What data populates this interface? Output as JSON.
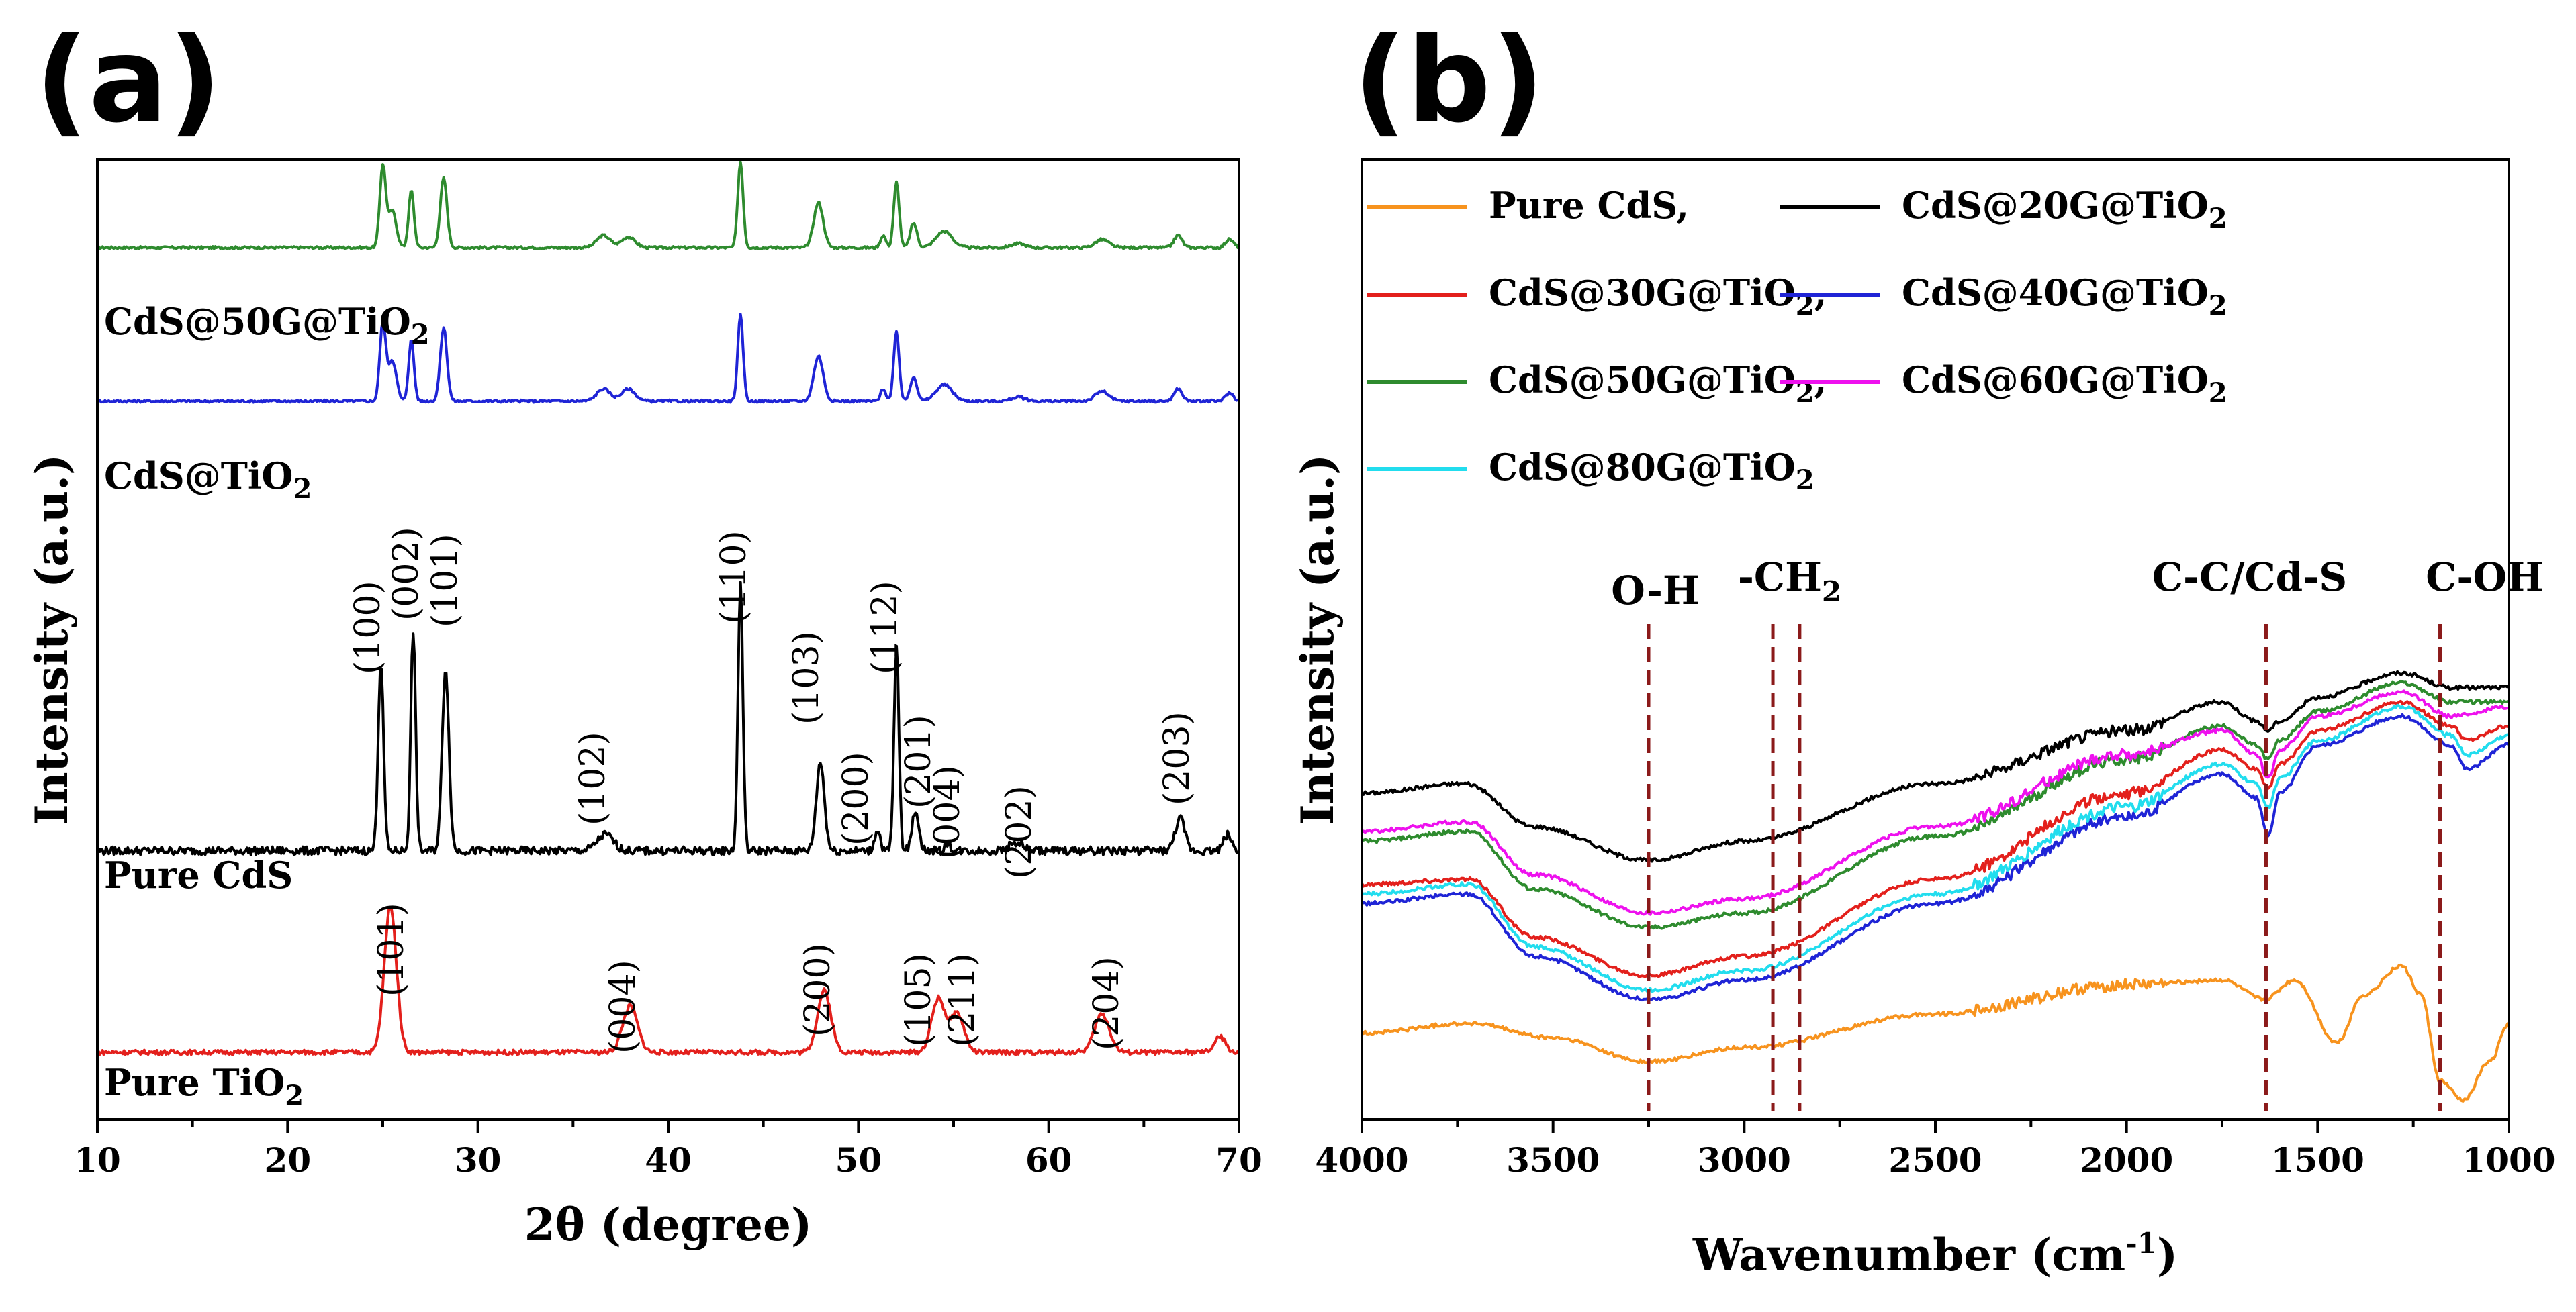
{
  "chart_data": [
    {
      "panel": "(a)",
      "type": "line",
      "title": "",
      "xlabel": "2θ (degree)",
      "ylabel": "Intensity (a.u.)",
      "xlim": [
        10,
        70
      ],
      "xticks": [
        10,
        20,
        30,
        40,
        50,
        60,
        70
      ],
      "series": [
        {
          "name": "CdS@50G@TiO",
          "name_sub": "2",
          "color": "#2e8b2e",
          "offset": 0.9,
          "scale": 0.085,
          "baseline": 0.1,
          "peaks": [
            [
              25.0,
              1.0,
              0.22
            ],
            [
              25.5,
              0.45,
              0.3
            ],
            [
              26.5,
              0.7,
              0.2
            ],
            [
              28.2,
              0.85,
              0.25
            ],
            [
              36.6,
              0.15,
              0.5
            ],
            [
              37.9,
              0.13,
              0.5
            ],
            [
              43.8,
              1.05,
              0.2
            ],
            [
              47.9,
              0.55,
              0.35
            ],
            [
              51.3,
              0.15,
              0.2
            ],
            [
              52.0,
              0.8,
              0.2
            ],
            [
              52.9,
              0.3,
              0.25
            ],
            [
              54.5,
              0.2,
              0.6
            ],
            [
              58.4,
              0.05,
              0.5
            ],
            [
              62.8,
              0.1,
              0.5
            ],
            [
              66.8,
              0.15,
              0.3
            ],
            [
              69.5,
              0.1,
              0.3
            ]
          ]
        },
        {
          "name": "CdS@TiO",
          "name_sub": "2",
          "color": "#1f24d6",
          "offset": 0.74,
          "scale": 0.085,
          "baseline": 0.1,
          "peaks": [
            [
              25.0,
              0.95,
              0.22
            ],
            [
              25.5,
              0.5,
              0.3
            ],
            [
              26.5,
              0.75,
              0.2
            ],
            [
              28.2,
              0.9,
              0.25
            ],
            [
              36.6,
              0.15,
              0.5
            ],
            [
              37.9,
              0.15,
              0.5
            ],
            [
              43.8,
              1.05,
              0.2
            ],
            [
              47.9,
              0.55,
              0.35
            ],
            [
              51.3,
              0.15,
              0.2
            ],
            [
              52.0,
              0.85,
              0.2
            ],
            [
              52.9,
              0.3,
              0.25
            ],
            [
              54.5,
              0.2,
              0.6
            ],
            [
              58.4,
              0.05,
              0.5
            ],
            [
              62.8,
              0.12,
              0.5
            ],
            [
              66.8,
              0.15,
              0.3
            ],
            [
              69.5,
              0.1,
              0.3
            ]
          ]
        },
        {
          "name": "Pure CdS",
          "color": "#000000",
          "offset": 0.28,
          "scale": 0.28,
          "baseline": 0.0,
          "peaks": [
            [
              24.9,
              0.7,
              0.2
            ],
            [
              26.6,
              0.82,
              0.18
            ],
            [
              28.3,
              0.68,
              0.25
            ],
            [
              36.7,
              0.06,
              0.6
            ],
            [
              43.8,
              1.0,
              0.18
            ],
            [
              48.0,
              0.33,
              0.3
            ],
            [
              51.0,
              0.08,
              0.2
            ],
            [
              52.0,
              0.76,
              0.18
            ],
            [
              53.0,
              0.15,
              0.25
            ],
            [
              54.7,
              0.03,
              0.2
            ],
            [
              58.3,
              0.03,
              0.5
            ],
            [
              66.9,
              0.12,
              0.35
            ],
            [
              69.4,
              0.06,
              0.3
            ]
          ]
        },
        {
          "name": "Pure TiO",
          "name_sub": "2",
          "color": "#e3201c",
          "offset": 0.07,
          "scale": 0.16,
          "baseline": 0.0,
          "peaks": [
            [
              25.4,
              0.95,
              0.45
            ],
            [
              38.0,
              0.3,
              0.55
            ],
            [
              48.2,
              0.4,
              0.5
            ],
            [
              54.2,
              0.35,
              0.5
            ],
            [
              55.2,
              0.25,
              0.5
            ],
            [
              62.8,
              0.25,
              0.55
            ],
            [
              69.0,
              0.1,
              0.4
            ]
          ]
        }
      ],
      "annotations": [
        {
          "text": "(100)",
          "x": 24.9
        },
        {
          "text": "(002)",
          "x": 26.6
        },
        {
          "text": "(101)",
          "x": 28.3
        },
        {
          "text": "(102)",
          "x": 36.8
        },
        {
          "text": "(110)",
          "x": 43.9
        },
        {
          "text": "(103)",
          "x": 48.1
        },
        {
          "text": "(200)",
          "x": 51.1
        },
        {
          "text": "(112)",
          "x": 52.1
        },
        {
          "text": "(201)",
          "x": 53.2
        },
        {
          "text": "(004)",
          "x": 54.8
        },
        {
          "text": "(202)",
          "x": 58.4
        },
        {
          "text": "(203)",
          "x": 67.0
        },
        {
          "text": "(101)",
          "x": 25.5
        },
        {
          "text": "(004)",
          "x": 38.0
        },
        {
          "text": "(200)",
          "x": 48.3
        },
        {
          "text": "(105)",
          "x": 54.2
        },
        {
          "text": "(211)",
          "x": 55.2
        },
        {
          "text": "(204)",
          "x": 62.9
        }
      ]
    },
    {
      "panel": "(b)",
      "type": "line",
      "title": "",
      "xlabel": "Wavenumber (cm",
      "xlabel_sup": "-1",
      "xlabel_end": ")",
      "ylabel": "Intensity (a.u.)",
      "xlim": [
        4000,
        1000
      ],
      "xticks": [
        4000,
        3500,
        3000,
        2500,
        2000,
        1500,
        1000
      ],
      "legend": [
        {
          "label": "Pure CdS,",
          "color": "#f7931e"
        },
        {
          "label": "CdS@20G@TiO",
          "sub": "2",
          "color": "#000000"
        },
        {
          "label": "CdS@30G@TiO",
          "sub": "2",
          "tail": ",",
          "color": "#e3201c"
        },
        {
          "label": "CdS@40G@TiO",
          "sub": "2",
          "color": "#1f24d6"
        },
        {
          "label": "CdS@50G@TiO",
          "sub": "2",
          "tail": ",",
          "color": "#2e8b2e"
        },
        {
          "label": "CdS@60G@TiO",
          "sub": "2",
          "color": "#ee11ee"
        },
        {
          "label": "CdS@80G@TiO",
          "sub": "2",
          "color": "#22ddee"
        }
      ],
      "series": [
        {
          "name": "CdS@20G@TiO2",
          "color": "#000000",
          "anchors": [
            [
              4000,
              0.34
            ],
            [
              3730,
              0.35
            ],
            [
              3550,
              0.305
            ],
            [
              3250,
              0.27
            ],
            [
              3000,
              0.29
            ],
            [
              2500,
              0.35
            ],
            [
              2000,
              0.405
            ],
            [
              1750,
              0.435
            ],
            [
              1660,
              0.415
            ],
            [
              1630,
              0.405
            ],
            [
              1600,
              0.415
            ],
            [
              1500,
              0.44
            ],
            [
              1280,
              0.465
            ],
            [
              1150,
              0.45
            ],
            [
              1000,
              0.45
            ]
          ]
        },
        {
          "name": "CdS@30G@TiO2",
          "color": "#e3201c",
          "anchors": [
            [
              4000,
              0.245
            ],
            [
              3720,
              0.25
            ],
            [
              3550,
              0.19
            ],
            [
              3250,
              0.15
            ],
            [
              3000,
              0.17
            ],
            [
              2500,
              0.25
            ],
            [
              2000,
              0.34
            ],
            [
              1750,
              0.385
            ],
            [
              1660,
              0.365
            ],
            [
              1630,
              0.345
            ],
            [
              1600,
              0.37
            ],
            [
              1500,
              0.405
            ],
            [
              1280,
              0.435
            ],
            [
              1150,
              0.41
            ],
            [
              1110,
              0.395
            ],
            [
              1000,
              0.41
            ]
          ]
        },
        {
          "name": "CdS@40G@TiO2",
          "color": "#1f24d6",
          "anchors": [
            [
              4000,
              0.225
            ],
            [
              3720,
              0.235
            ],
            [
              3550,
              0.17
            ],
            [
              3250,
              0.125
            ],
            [
              3000,
              0.145
            ],
            [
              2500,
              0.225
            ],
            [
              2000,
              0.315
            ],
            [
              1750,
              0.36
            ],
            [
              1660,
              0.335
            ],
            [
              1630,
              0.295
            ],
            [
              1600,
              0.34
            ],
            [
              1500,
              0.39
            ],
            [
              1280,
              0.42
            ],
            [
              1150,
              0.39
            ],
            [
              1110,
              0.365
            ],
            [
              1000,
              0.39
            ]
          ]
        },
        {
          "name": "CdS@50G@TiO2",
          "color": "#2e8b2e",
          "anchors": [
            [
              4000,
              0.29
            ],
            [
              3720,
              0.3
            ],
            [
              3550,
              0.24
            ],
            [
              3250,
              0.2
            ],
            [
              3000,
              0.215
            ],
            [
              2500,
              0.295
            ],
            [
              2000,
              0.375
            ],
            [
              1750,
              0.41
            ],
            [
              1660,
              0.39
            ],
            [
              1630,
              0.375
            ],
            [
              1600,
              0.395
            ],
            [
              1500,
              0.425
            ],
            [
              1280,
              0.455
            ],
            [
              1150,
              0.435
            ],
            [
              1000,
              0.435
            ]
          ]
        },
        {
          "name": "CdS@60G@TiO2",
          "color": "#ee11ee",
          "anchors": [
            [
              4000,
              0.3
            ],
            [
              3720,
              0.31
            ],
            [
              3550,
              0.255
            ],
            [
              3250,
              0.215
            ],
            [
              3000,
              0.23
            ],
            [
              2500,
              0.305
            ],
            [
              2000,
              0.38
            ],
            [
              1750,
              0.405
            ],
            [
              1660,
              0.38
            ],
            [
              1630,
              0.355
            ],
            [
              1600,
              0.385
            ],
            [
              1500,
              0.42
            ],
            [
              1280,
              0.445
            ],
            [
              1150,
              0.42
            ],
            [
              1000,
              0.43
            ]
          ]
        },
        {
          "name": "CdS@80G@TiO2",
          "color": "#22ddee",
          "anchors": [
            [
              4000,
              0.235
            ],
            [
              3720,
              0.245
            ],
            [
              3550,
              0.18
            ],
            [
              3250,
              0.135
            ],
            [
              3000,
              0.155
            ],
            [
              2500,
              0.235
            ],
            [
              2000,
              0.325
            ],
            [
              1750,
              0.37
            ],
            [
              1660,
              0.35
            ],
            [
              1630,
              0.325
            ],
            [
              1600,
              0.355
            ],
            [
              1500,
              0.395
            ],
            [
              1280,
              0.43
            ],
            [
              1150,
              0.4
            ],
            [
              1110,
              0.38
            ],
            [
              1000,
              0.4
            ]
          ]
        },
        {
          "name": "Pure CdS",
          "color": "#f7931e",
          "anchors": [
            [
              4000,
              0.09
            ],
            [
              3720,
              0.1
            ],
            [
              3500,
              0.085
            ],
            [
              3250,
              0.06
            ],
            [
              3000,
              0.075
            ],
            [
              2500,
              0.11
            ],
            [
              2000,
              0.14
            ],
            [
              1750,
              0.145
            ],
            [
              1640,
              0.125
            ],
            [
              1560,
              0.145
            ],
            [
              1450,
              0.08
            ],
            [
              1380,
              0.13
            ],
            [
              1280,
              0.16
            ],
            [
              1230,
              0.13
            ],
            [
              1180,
              0.04
            ],
            [
              1120,
              0.02
            ],
            [
              1050,
              0.06
            ],
            [
              1000,
              0.1
            ]
          ]
        }
      ],
      "markers": [
        {
          "text": "O-H",
          "x": 3250
        },
        {
          "text": "-CH",
          "sub": "2",
          "x": 2925
        },
        {
          "text": "",
          "x": 2855
        },
        {
          "text": "C-C/Cd-S",
          "x": 1635
        },
        {
          "text": "C-OH",
          "x": 1180
        }
      ]
    }
  ]
}
